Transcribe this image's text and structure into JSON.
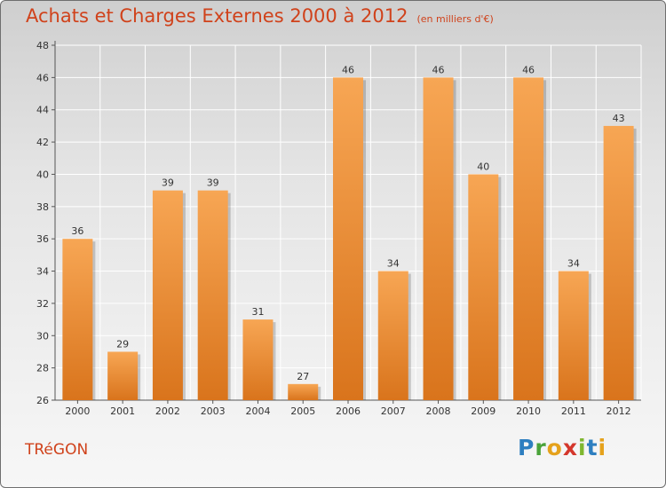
{
  "header": {
    "title": "Achats et Charges Externes 2000 à 2012",
    "unit": "(en milliers d'€)"
  },
  "footer": {
    "commune": "TRéGON",
    "logo_letters": [
      {
        "char": "P",
        "color": "#2e7fc0"
      },
      {
        "char": "r",
        "color": "#4aa33a"
      },
      {
        "char": "o",
        "color": "#e5a21c"
      },
      {
        "char": "x",
        "color": "#d4372c"
      },
      {
        "char": "i",
        "color": "#7fb72f"
      },
      {
        "char": "t",
        "color": "#2e7fc0"
      },
      {
        "char": "i",
        "color": "#e5a21c"
      }
    ]
  },
  "chart_data": {
    "type": "bar",
    "title": "Achats et Charges Externes 2000 à 2012",
    "subtitle": "(en milliers d'€)",
    "categories": [
      "2000",
      "2001",
      "2002",
      "2003",
      "2004",
      "2005",
      "2006",
      "2007",
      "2008",
      "2009",
      "2010",
      "2011",
      "2012"
    ],
    "values": [
      36,
      29,
      39,
      39,
      31,
      27,
      46,
      34,
      46,
      40,
      46,
      34,
      43
    ],
    "ylim": [
      26,
      48
    ],
    "yticks": [
      26,
      28,
      30,
      32,
      34,
      36,
      38,
      40,
      42,
      44,
      46,
      48
    ],
    "grid": true,
    "bar_color_light": "#f7a654",
    "bar_color_dark": "#d9741c"
  }
}
